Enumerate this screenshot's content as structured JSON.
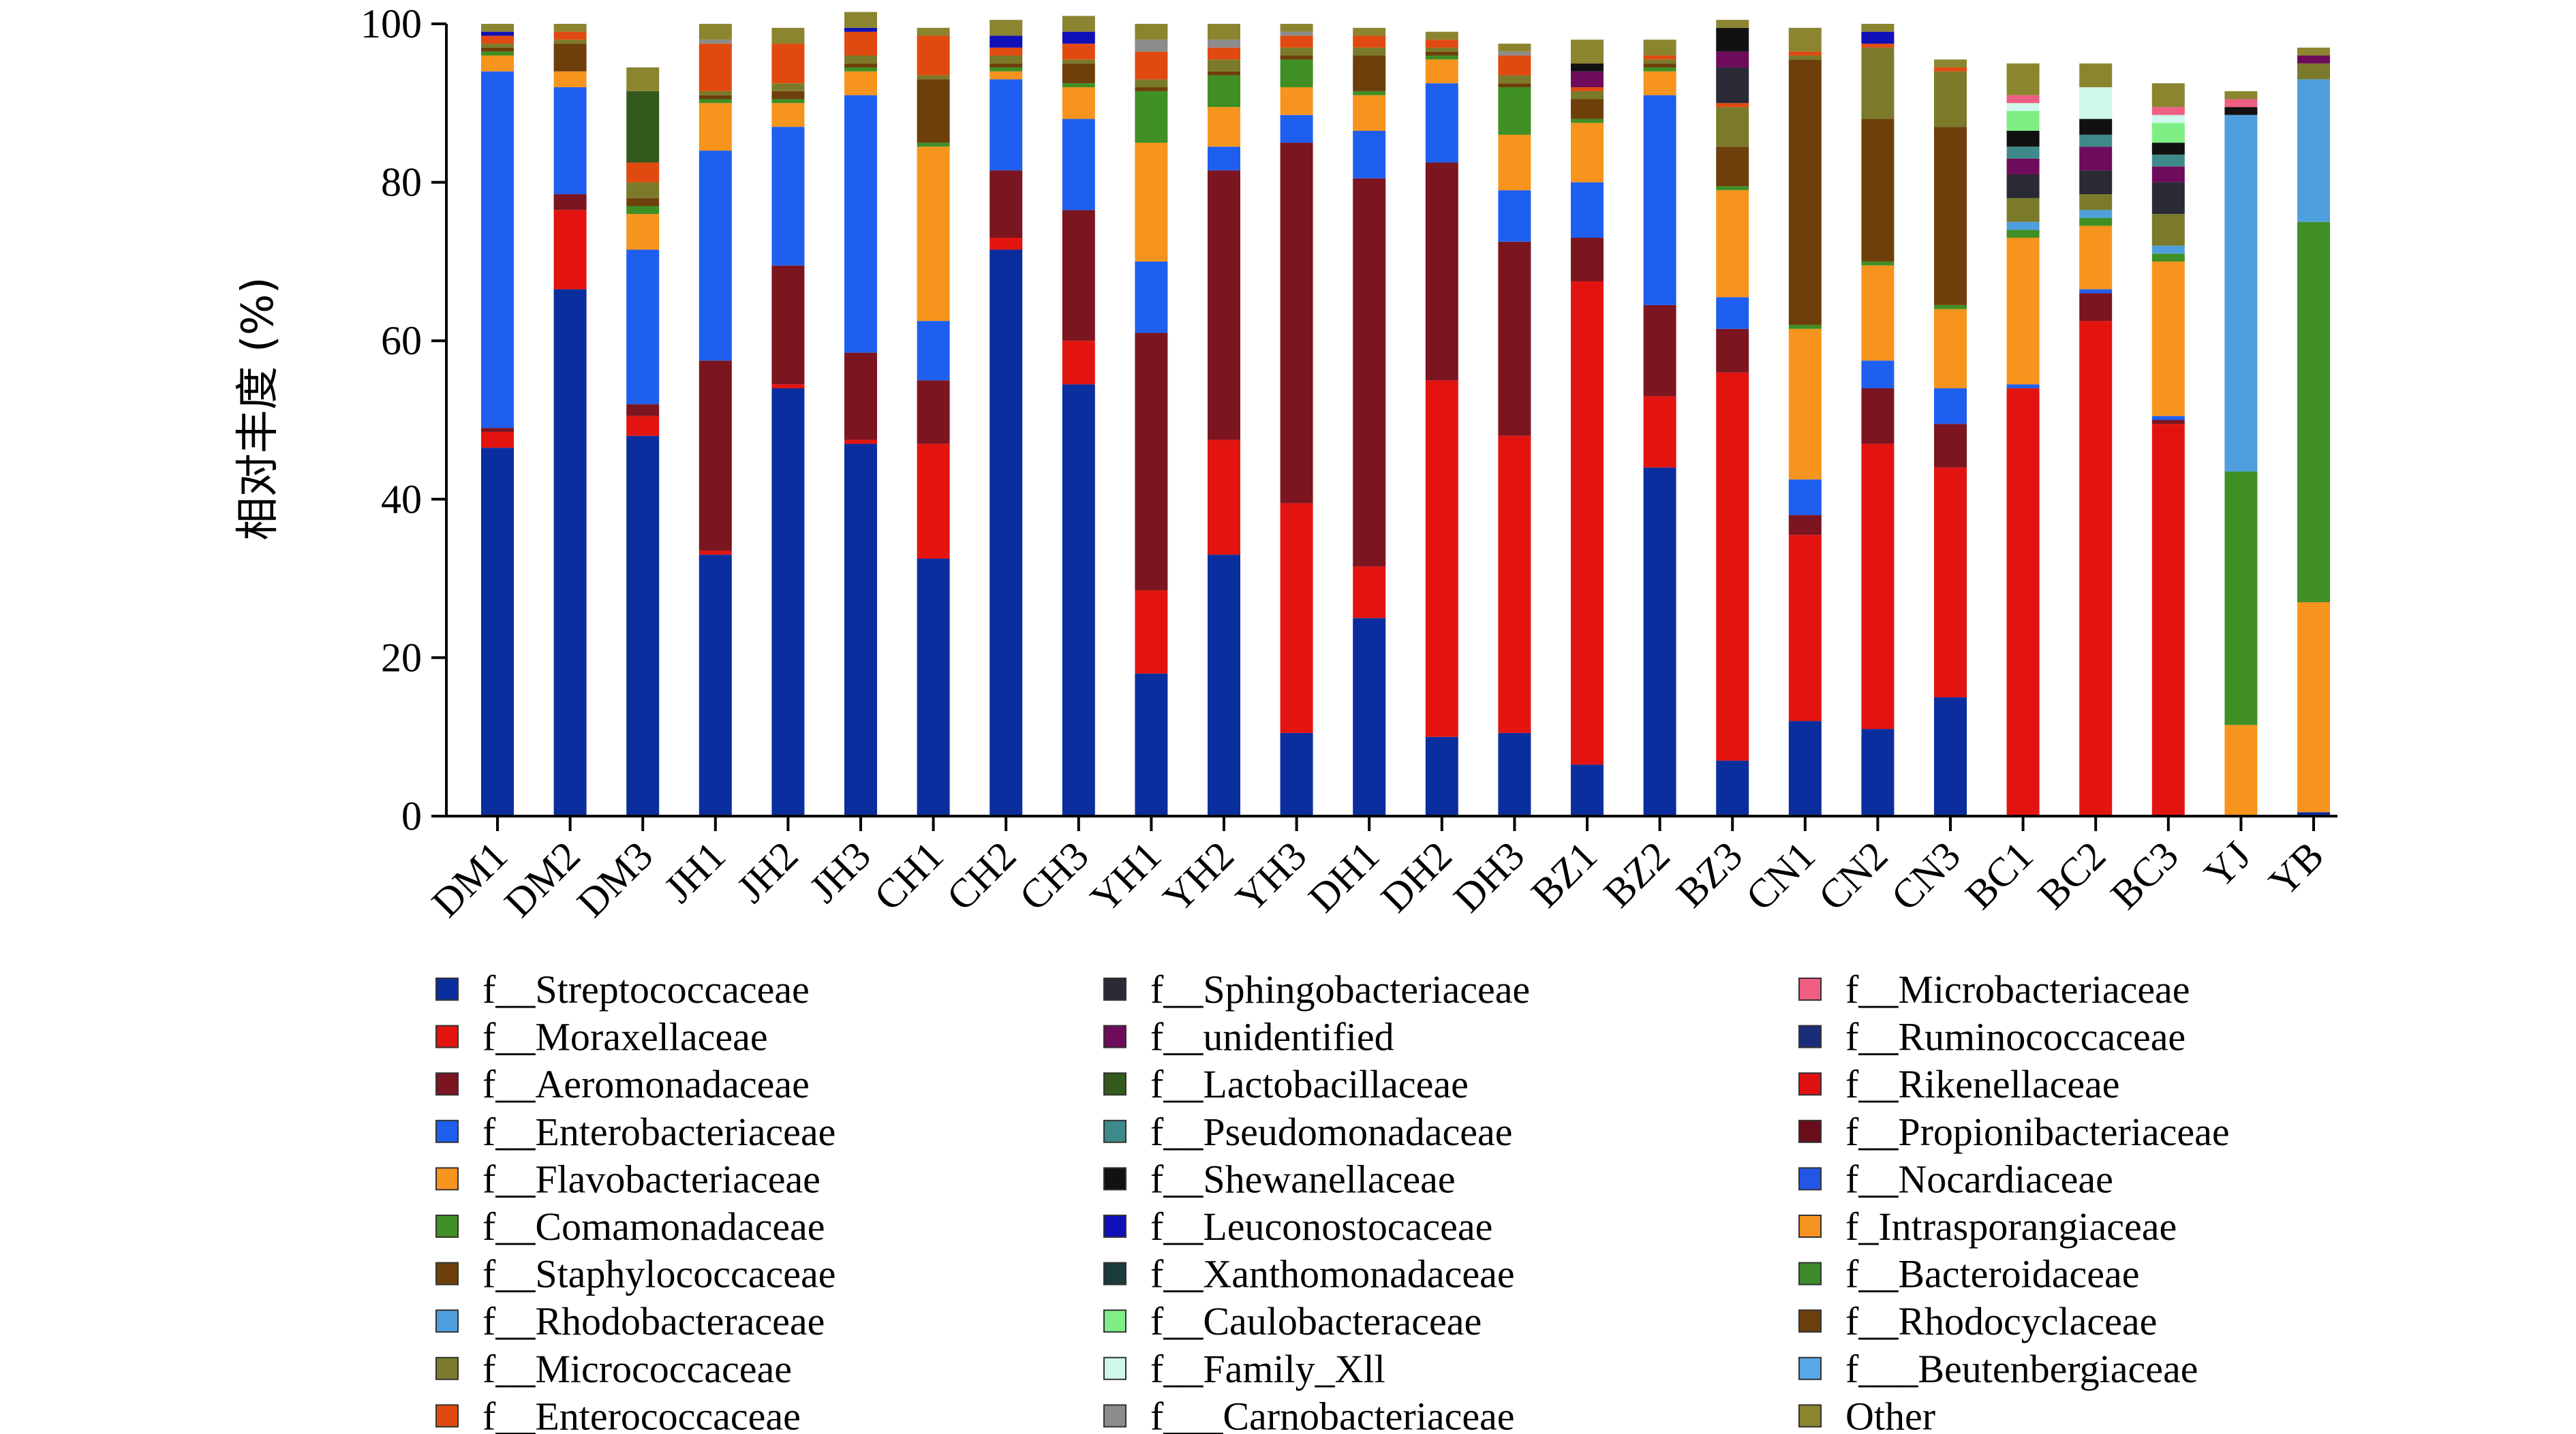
{
  "chart_data": {
    "type": "bar",
    "stacked": true,
    "ylabel": "相对丰度 (%)",
    "xlabel": "",
    "title": "",
    "ylim": [
      0,
      100
    ],
    "yticks": [
      "0",
      "20",
      "40",
      "60",
      "80",
      "100"
    ],
    "categories": [
      "DM1",
      "DM2",
      "DM3",
      "JH1",
      "JH2",
      "JH3",
      "CH1",
      "CH2",
      "CH3",
      "YH1",
      "YH2",
      "YH3",
      "DH1",
      "DH2",
      "DH3",
      "BZ1",
      "BZ2",
      "BZ3",
      "CN1",
      "CN2",
      "CN3",
      "BC1",
      "BC2",
      "BC3",
      "YJ",
      "YB"
    ],
    "legend_position": "bottom",
    "series": [
      {
        "name": "f__Streptococcaceae",
        "color": "#0a2e9e",
        "values": [
          46.5,
          66.5,
          48,
          33,
          54,
          47,
          32.5,
          71.5,
          54.5,
          18,
          33,
          10.5,
          25,
          10,
          10.5,
          6.5,
          44,
          7,
          12,
          11,
          15,
          0,
          0,
          0,
          0,
          0.5
        ]
      },
      {
        "name": "f__Moraxellaceae",
        "color": "#e3140f",
        "values": [
          2,
          10,
          2.5,
          0.5,
          0.5,
          0.5,
          14.5,
          1.5,
          5.5,
          10.5,
          14.5,
          29,
          6.5,
          45,
          37.5,
          61,
          9,
          49,
          23.5,
          36,
          29,
          54,
          62.5,
          49.5,
          0,
          0
        ]
      },
      {
        "name": "f__Aeromonadaceae",
        "color": "#7b1520",
        "values": [
          0.5,
          2,
          1.5,
          24,
          15,
          11,
          8,
          8.5,
          16.5,
          32.5,
          34,
          45.5,
          49,
          27.5,
          24.5,
          5.5,
          11.5,
          5.5,
          2.5,
          7,
          5.5,
          0,
          3.5,
          0.5,
          0,
          0
        ]
      },
      {
        "name": "f__Enterobacteriaceae",
        "color": "#1f5fef",
        "values": [
          45,
          13.5,
          19.5,
          26.5,
          17.5,
          32.5,
          7.5,
          11.5,
          11.5,
          9,
          3,
          3.5,
          6,
          10,
          6.5,
          7,
          26.5,
          4,
          4.5,
          3.5,
          4.5,
          0.5,
          0.5,
          0.5,
          0,
          0
        ]
      },
      {
        "name": "f__Flavobacteriaceae",
        "color": "#f7941d",
        "values": [
          2,
          2,
          4.5,
          6,
          3,
          3,
          22,
          1,
          4,
          15,
          5,
          3.5,
          4.5,
          3,
          7,
          7.5,
          3,
          13.5,
          19,
          12,
          10,
          18.5,
          8,
          19.5,
          11.5,
          26.5
        ]
      },
      {
        "name": "f__Comamonadaceae",
        "color": "#3f8f25",
        "values": [
          0.5,
          0,
          1,
          0.5,
          0.5,
          0.5,
          0.5,
          0.5,
          0.5,
          6.5,
          4,
          3.5,
          0.5,
          0.5,
          6,
          0.5,
          0.5,
          0.5,
          0.5,
          0.5,
          0.5,
          1,
          1,
          1,
          32,
          48
        ]
      },
      {
        "name": "f__Staphylococcaceae",
        "color": "#6e3f0b",
        "values": [
          0.5,
          3.5,
          1,
          0.5,
          1,
          0.5,
          8,
          0.5,
          2.5,
          0.5,
          0.5,
          0.5,
          4.5,
          0.5,
          0.5,
          2.5,
          0.5,
          5,
          33.5,
          18,
          22.5,
          0,
          0,
          0,
          0,
          0
        ]
      },
      {
        "name": "f__Rhodobacteraceae",
        "color": "#4f9fdf",
        "values": [
          0,
          0,
          0,
          0,
          0,
          0,
          0,
          0,
          0,
          0,
          0,
          0,
          0,
          0,
          0,
          0,
          0,
          0,
          0,
          0,
          0,
          1,
          1,
          1,
          45,
          18
        ]
      },
      {
        "name": "f__Micrococcaceae",
        "color": "#7a7a2a",
        "values": [
          0.5,
          0.5,
          2,
          0.5,
          1,
          1,
          0.5,
          1,
          0.5,
          1,
          1.5,
          1,
          1,
          0.5,
          1,
          1,
          0.5,
          5,
          0.5,
          9,
          7,
          3,
          2,
          4,
          0,
          2
        ]
      },
      {
        "name": "f__Enterococcaceae",
        "color": "#e04a10",
        "values": [
          1,
          1,
          2.5,
          6,
          5,
          3,
          5,
          1,
          2,
          3.5,
          1.5,
          1.5,
          1.5,
          1,
          2.5,
          0.5,
          0.5,
          0.5,
          0.5,
          0.5,
          0.5,
          0,
          0,
          0,
          0,
          0
        ]
      },
      {
        "name": "f__Sphingobacteriaceae",
        "color": "#2a2a35",
        "values": [
          0,
          0,
          0,
          0,
          0,
          0,
          0,
          0,
          0,
          0,
          0,
          0,
          0,
          0,
          0,
          0,
          0,
          4.5,
          0,
          0,
          0,
          3,
          3,
          4,
          0,
          0
        ]
      },
      {
        "name": "f__unidentified",
        "color": "#6e0b5b",
        "values": [
          0,
          0,
          0,
          0,
          0,
          0,
          0,
          0,
          0,
          0,
          0,
          0,
          0,
          0,
          0,
          2,
          0,
          2,
          0,
          0,
          0,
          2,
          3,
          2,
          0,
          1
        ]
      },
      {
        "name": "f__Lactobacillaceae",
        "color": "#33591c",
        "values": [
          0,
          0,
          9,
          0,
          0,
          0,
          0,
          0,
          0,
          0,
          0,
          0,
          0,
          0,
          0,
          0,
          0,
          0,
          0,
          0,
          0,
          0,
          0,
          0,
          0,
          0
        ]
      },
      {
        "name": "f__Pseudomonadaceae",
        "color": "#3e8a8a",
        "values": [
          0,
          0,
          0,
          0,
          0,
          0,
          0,
          0,
          0,
          0,
          0,
          0,
          0,
          0,
          0,
          0,
          0,
          0,
          0,
          0,
          0,
          1.5,
          1.5,
          1.5,
          0,
          0
        ]
      },
      {
        "name": "f__Shewanellaceae",
        "color": "#111111",
        "values": [
          0,
          0,
          0,
          0,
          0,
          0,
          0,
          0,
          0,
          0,
          0,
          0,
          0,
          0,
          0,
          1,
          0,
          3,
          0,
          0,
          0,
          2,
          2,
          1.5,
          1,
          0
        ]
      },
      {
        "name": "f__Leuconostocaceae",
        "color": "#1010b8",
        "values": [
          0.5,
          0,
          0,
          0,
          0,
          0.5,
          0,
          1.5,
          1.5,
          0,
          0,
          0,
          0,
          0,
          0,
          0,
          0,
          0,
          0,
          1.5,
          0,
          0,
          0,
          0,
          0,
          0
        ]
      },
      {
        "name": "f__Xanthomonadaceae",
        "color": "#1b3a3a",
        "values": [
          0,
          0,
          0,
          0,
          0,
          0,
          0,
          0,
          0,
          0,
          0,
          0,
          0,
          0,
          0,
          0,
          0,
          0,
          0,
          0,
          0,
          0,
          0,
          0,
          0,
          0
        ]
      },
      {
        "name": "f__Caulobacteraceae",
        "color": "#7fef85",
        "values": [
          0,
          0,
          0,
          0,
          0,
          0,
          0,
          0,
          0,
          0,
          0,
          0,
          0,
          0,
          0,
          0,
          0,
          0,
          0,
          0,
          0,
          2.5,
          0,
          2.5,
          0,
          0
        ]
      },
      {
        "name": "f__Family_Xll",
        "color": "#cff7ec",
        "values": [
          0,
          0,
          0,
          0,
          0,
          0,
          0,
          0,
          0,
          0,
          0,
          0,
          0,
          0,
          0,
          0,
          0,
          0,
          0,
          0,
          0,
          1,
          4,
          1,
          0,
          0
        ]
      },
      {
        "name": "f___Carnobacteriaceae",
        "color": "#8c8c8c",
        "values": [
          0,
          0,
          0,
          0.5,
          0,
          0,
          0,
          0,
          0,
          1.5,
          1,
          0.5,
          0,
          0,
          0.5,
          0,
          0,
          0,
          0,
          0,
          0,
          0,
          0,
          0,
          0,
          0
        ]
      },
      {
        "name": "f__Microbacteriaceae",
        "color": "#ef5f82",
        "values": [
          0,
          0,
          0,
          0,
          0,
          0,
          0,
          0,
          0,
          0,
          0,
          0,
          0,
          0,
          0,
          0,
          0,
          0,
          0,
          0,
          0,
          1,
          0,
          1,
          1,
          0
        ]
      },
      {
        "name": "f__Ruminococcaceae",
        "color": "#1a2d7a",
        "values": [
          0,
          0,
          0,
          0,
          0,
          0,
          0,
          0,
          0,
          0,
          0,
          0,
          0,
          0,
          0,
          0,
          0,
          0,
          0,
          0,
          0,
          0,
          0,
          0,
          0,
          0
        ]
      },
      {
        "name": "f__Rikenellaceae",
        "color": "#df1010",
        "values": [
          0,
          0,
          0,
          0,
          0,
          0,
          0,
          0,
          0,
          0,
          0,
          0,
          0,
          0,
          0,
          0,
          0,
          0,
          0,
          0,
          0,
          0,
          0,
          0,
          0,
          0
        ]
      },
      {
        "name": "f__Propionibacteriaceae",
        "color": "#6a0d1a",
        "values": [
          0,
          0,
          0,
          0,
          0,
          0,
          0,
          0,
          0,
          0,
          0,
          0,
          0,
          0,
          0,
          0,
          0,
          0,
          0,
          0,
          0,
          0,
          0,
          0,
          0,
          0
        ]
      },
      {
        "name": "f__Nocardiaceae",
        "color": "#2356e6",
        "values": [
          0,
          0,
          0,
          0,
          0,
          0,
          0,
          0,
          0,
          0,
          0,
          0,
          0,
          0,
          0,
          0,
          0,
          0,
          0,
          0,
          0,
          0,
          0,
          0,
          0,
          0
        ]
      },
      {
        "name": "f_Intrasporangiaceae",
        "color": "#f79322",
        "values": [
          0,
          0,
          0,
          0,
          0,
          0,
          0,
          0,
          0,
          0,
          0,
          0,
          0,
          0,
          0,
          0,
          0,
          0,
          0,
          0,
          0,
          0,
          0,
          0,
          0,
          0
        ]
      },
      {
        "name": "f__Bacteroidaceae",
        "color": "#3d8b2b",
        "values": [
          0,
          0,
          0,
          0,
          0,
          0,
          0,
          0,
          0,
          0,
          0,
          0,
          0,
          0,
          0,
          0,
          0,
          0,
          0,
          0,
          0,
          0,
          0,
          0,
          0,
          0
        ]
      },
      {
        "name": "f__Rhodocyclaceae",
        "color": "#6b3e0d",
        "values": [
          0,
          0,
          0,
          0,
          0,
          0,
          0,
          0,
          0,
          0,
          0,
          0,
          0,
          0,
          0,
          0,
          0,
          0,
          0,
          0,
          0,
          0,
          0,
          0,
          0,
          0
        ]
      },
      {
        "name": "f___Beutenbergiaceae",
        "color": "#5aa8e6",
        "values": [
          0,
          0,
          0,
          0,
          0,
          0,
          0,
          0,
          0,
          0,
          0,
          0,
          0,
          0,
          0,
          0,
          0,
          0,
          0,
          0,
          0,
          0,
          0,
          0,
          0,
          0
        ]
      },
      {
        "name": "Other",
        "color": "#8b8530",
        "values": [
          1,
          1,
          3,
          2,
          2,
          2,
          1,
          2,
          2,
          2,
          2,
          1,
          1,
          1,
          1,
          3,
          2,
          1,
          3,
          1,
          1,
          4,
          3,
          3,
          1,
          1
        ]
      }
    ]
  }
}
